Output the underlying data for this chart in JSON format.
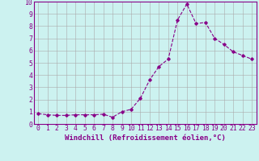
{
  "x": [
    0,
    1,
    2,
    3,
    4,
    5,
    6,
    7,
    8,
    9,
    10,
    11,
    12,
    13,
    14,
    15,
    16,
    17,
    18,
    19,
    20,
    21,
    22,
    23
  ],
  "y": [
    0.85,
    0.75,
    0.7,
    0.7,
    0.75,
    0.75,
    0.75,
    0.8,
    0.55,
    1.0,
    1.2,
    2.1,
    3.6,
    4.7,
    5.3,
    8.5,
    9.8,
    8.2,
    8.3,
    7.0,
    6.5,
    5.9,
    5.6,
    5.3
  ],
  "line_color": "#880088",
  "marker": "D",
  "marker_size": 1.8,
  "line_width": 0.8,
  "bg_color": "#ccf2f0",
  "grid_color": "#aaaaaa",
  "xlabel": "Windchill (Refroidissement éolien,°C)",
  "xlabel_color": "#880088",
  "tick_color": "#880088",
  "ylim": [
    0,
    10
  ],
  "xlim": [
    -0.5,
    23.5
  ],
  "yticks": [
    0,
    1,
    2,
    3,
    4,
    5,
    6,
    7,
    8,
    9,
    10
  ],
  "xticks": [
    0,
    1,
    2,
    3,
    4,
    5,
    6,
    7,
    8,
    9,
    10,
    11,
    12,
    13,
    14,
    15,
    16,
    17,
    18,
    19,
    20,
    21,
    22,
    23
  ],
  "figsize": [
    3.2,
    2.0
  ],
  "dpi": 100,
  "spine_color": "#880088",
  "xlabel_fontsize": 6.5,
  "tick_fontsize": 5.8
}
